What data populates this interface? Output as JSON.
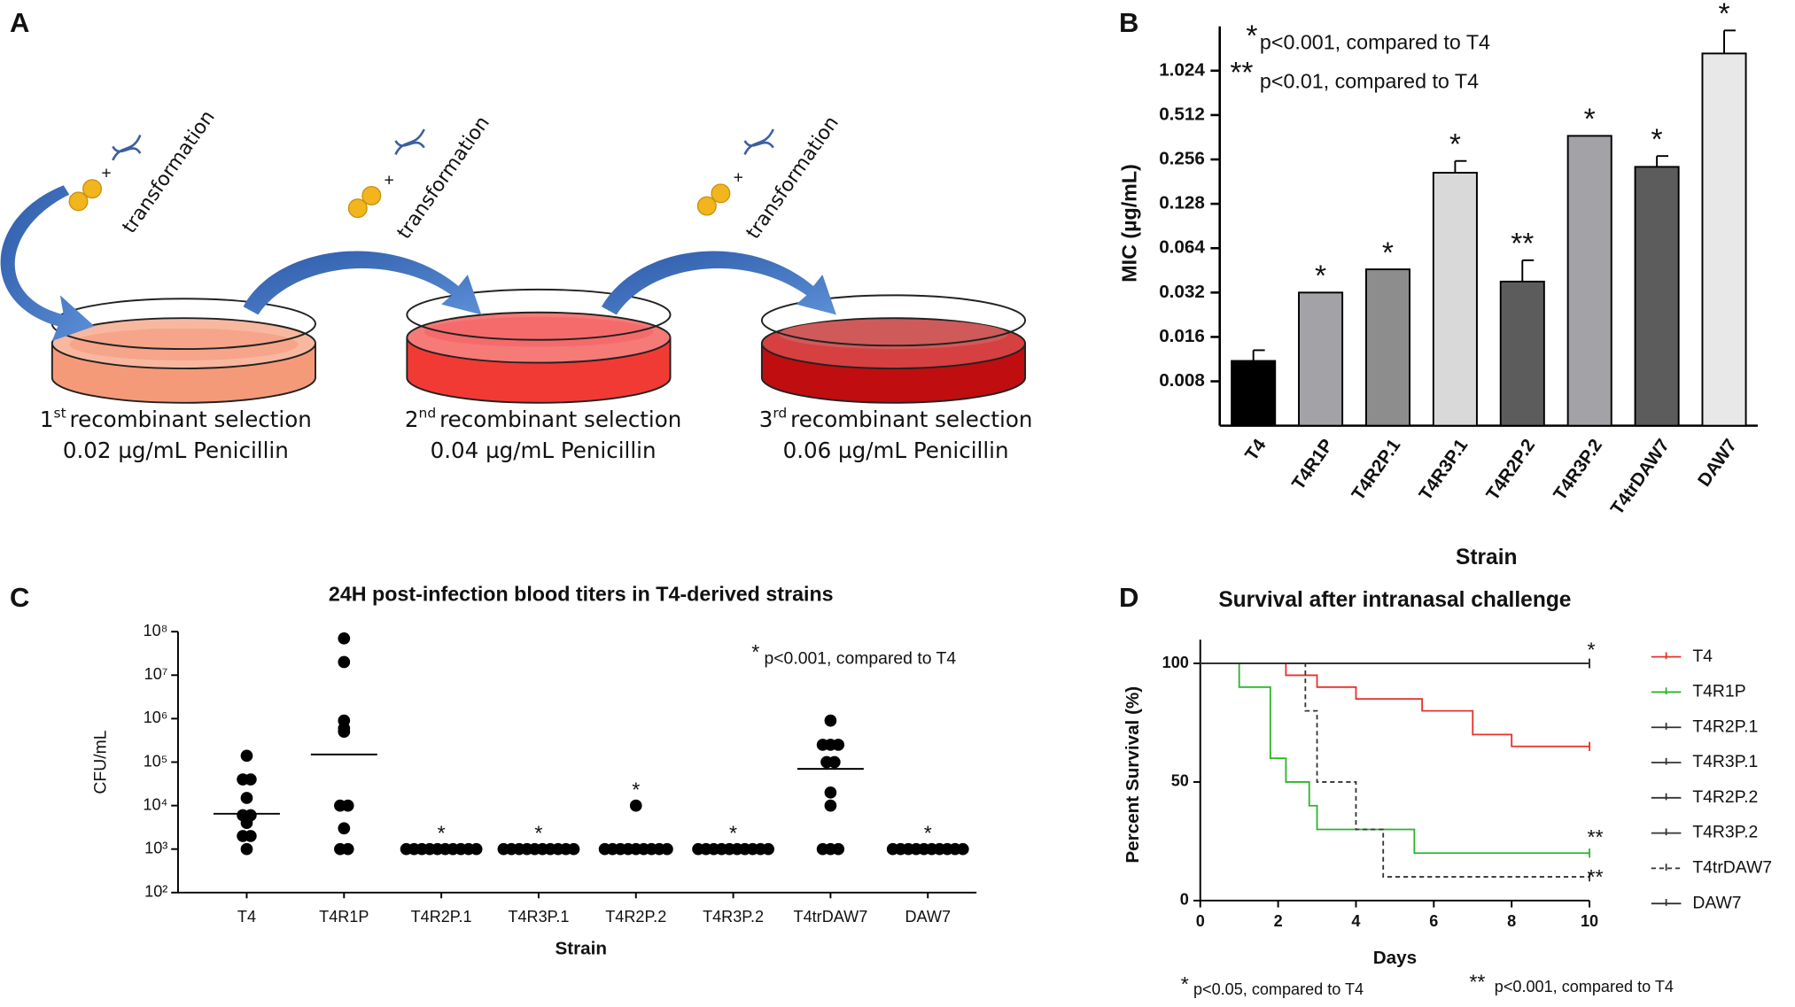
{
  "panel_labels": [
    "A",
    "B",
    "C",
    "D"
  ],
  "diagram": {
    "steps": [
      {
        "ordinal": "1",
        "suffix": "st",
        "label": "recombinant selection",
        "concentration": "0.02 µg/mL Penicillin",
        "plus": "+",
        "transformation": "transformation"
      },
      {
        "ordinal": "2",
        "suffix": "nd",
        "label": "recombinant selection",
        "concentration": "0.04 µg/mL Penicillin",
        "plus": "+",
        "transformation": "transformation"
      },
      {
        "ordinal": "3",
        "suffix": "rd",
        "label": "recombinant selection",
        "concentration": "0.06 µg/mL Penicillin",
        "plus": "+",
        "transformation": "transformation"
      }
    ]
  },
  "chart_data": [
    {
      "type": "bar",
      "y_label": "MIC (µg/mL)",
      "x_label": "Strain",
      "categories": [
        "T4",
        "T4R1P",
        "T4R2P.1",
        "T4R3P.1",
        "T4R2P.2",
        "T4R3P.2",
        "T4trDAW7",
        "DAW7"
      ],
      "values": [
        0.011,
        0.032,
        0.046,
        0.208,
        0.038,
        0.37,
        0.228,
        1.34
      ],
      "error_top": [
        0.013,
        null,
        null,
        0.25,
        0.053,
        null,
        0.27,
        1.92
      ],
      "significance": [
        null,
        "*",
        "*",
        "*",
        "**",
        "*",
        "*",
        "*"
      ],
      "colors": [
        "#000000",
        "#a3a3a7",
        "#8d8d8d",
        "#d9d9d9",
        "#5c5c5c",
        "#a3a3a7",
        "#5c5c5c",
        "#e8e8e8"
      ],
      "yscale": "log",
      "ylim": [
        0.004,
        2.048
      ],
      "yticks": [
        0.008,
        0.016,
        0.032,
        0.064,
        0.128,
        0.256,
        0.512,
        1.024
      ],
      "annotations": [
        {
          "symbol": "*",
          "text": "p<0.001, compared to T4"
        },
        {
          "symbol": "**",
          "text": "p<0.01, compared to T4"
        }
      ]
    },
    {
      "type": "dot",
      "title": "24H post-infection blood titers in T4-derived strains",
      "y_label": "CFU/mL",
      "x_label": "Strain",
      "categories": [
        "T4",
        "T4R1P",
        "T4R2P.1",
        "T4R3P.1",
        "T4R2P.2",
        "T4R3P.2",
        "T4trDAW7",
        "DAW7"
      ],
      "points": [
        [
          140000,
          40000,
          40000,
          15000,
          6000,
          6000,
          4000,
          2000,
          2000,
          1000
        ],
        [
          70000000,
          20000000,
          900000,
          600000,
          500000,
          10000,
          10000,
          3000,
          1000,
          1000
        ],
        [
          1000,
          1000,
          1000,
          1000,
          1000,
          1000,
          1000,
          1000,
          1000,
          1000
        ],
        [
          1000,
          1000,
          1000,
          1000,
          1000,
          1000,
          1000,
          1000,
          1000,
          1000
        ],
        [
          10000,
          1000,
          1000,
          1000,
          1000,
          1000,
          1000,
          1000,
          1000,
          1000
        ],
        [
          1000,
          1000,
          1000,
          1000,
          1000,
          1000,
          1000,
          1000,
          1000,
          1000
        ],
        [
          900000,
          250000,
          250000,
          250000,
          100000,
          100000,
          20000,
          10000,
          1000,
          1000,
          1000
        ],
        [
          1000,
          1000,
          1000,
          1000,
          1000,
          1000,
          1000,
          1000,
          1000,
          1000
        ]
      ],
      "medians": [
        6500,
        150000,
        1000,
        1000,
        1000,
        1000,
        70000,
        1000
      ],
      "significance": [
        null,
        null,
        "*",
        "*",
        "*",
        "*",
        null,
        "*"
      ],
      "color": "#000000",
      "yscale": "log",
      "ylim": [
        100,
        100000000
      ],
      "yticks": [
        {
          "value": 100,
          "label": "10²"
        },
        {
          "value": 1000,
          "label": "10³"
        },
        {
          "value": 10000,
          "label": "10⁴"
        },
        {
          "value": 100000,
          "label": "10⁵"
        },
        {
          "value": 1000000,
          "label": "10⁶"
        },
        {
          "value": 10000000,
          "label": "10⁷"
        },
        {
          "value": 100000000,
          "label": "10⁸"
        }
      ],
      "annotations": [
        {
          "symbol": "*",
          "text": "p<0.001, compared to T4"
        }
      ]
    },
    {
      "type": "step",
      "title": "Survival after intranasal challenge",
      "y_label": "Percent  Survival (%)",
      "x_label": "Days",
      "xlim": [
        0,
        10
      ],
      "xticks": [
        0,
        2,
        4,
        6,
        8,
        10
      ],
      "ylim": [
        0,
        110
      ],
      "yticks": [
        0,
        50,
        100
      ],
      "series": [
        {
          "name": "T4",
          "color": "#e8312a",
          "x": [
            0,
            2.2,
            3,
            4,
            5.7,
            7,
            8,
            10
          ],
          "values": [
            100,
            95,
            90,
            85,
            80,
            70,
            65,
            65
          ]
        },
        {
          "name": "T4R1P",
          "color": "#2bb52b",
          "x": [
            0,
            1,
            1.8,
            2.2,
            2.8,
            3,
            5.5,
            10
          ],
          "values": [
            100,
            90,
            60,
            50,
            40,
            30,
            20,
            20
          ],
          "annotation": "**"
        },
        {
          "name": "T4R2P.1",
          "color": "#333333",
          "x": [
            0,
            10
          ],
          "values": [
            100,
            100
          ]
        },
        {
          "name": "T4R3P.1",
          "color": "#333333",
          "x": [
            0,
            10
          ],
          "values": [
            100,
            100
          ]
        },
        {
          "name": "T4R2P.2",
          "color": "#333333",
          "x": [
            0,
            10
          ],
          "values": [
            100,
            100
          ]
        },
        {
          "name": "T4R3P.2",
          "color": "#333333",
          "x": [
            0,
            10
          ],
          "values": [
            100,
            100
          ]
        },
        {
          "name": "T4trDAW7",
          "color": "#333333",
          "dashed": true,
          "x": [
            0,
            2.7,
            3,
            4,
            4.7,
            10
          ],
          "values": [
            100,
            80,
            50,
            30,
            10,
            10
          ],
          "annotation": "**"
        },
        {
          "name": "DAW7",
          "color": "#333333",
          "x": [
            0,
            10
          ],
          "values": [
            100,
            100
          ],
          "annotation": "*"
        }
      ],
      "footnotes": [
        {
          "symbol": "*",
          "text": "p<0.05, compared to T4"
        },
        {
          "symbol": "**",
          "text": "p<0.001, compared to T4"
        }
      ]
    }
  ]
}
